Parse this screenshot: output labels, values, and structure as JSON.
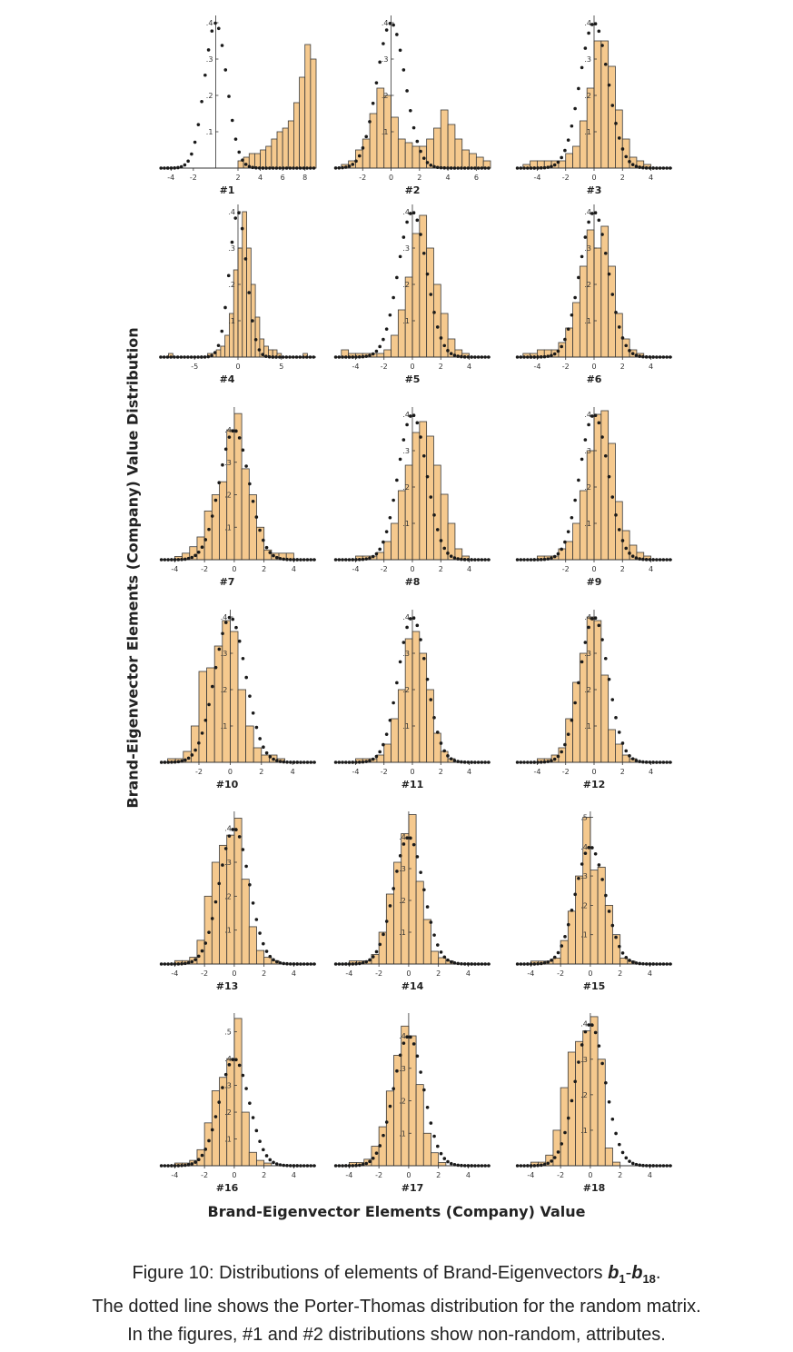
{
  "figure": {
    "ylabel": "Brand-Eigenvector Elements (Company) Value Distribution",
    "xlabel": "Brand-Eigenvector Elements (Company) Value",
    "caption": {
      "line1_prefix": "Figure 10: Distributions of elements of Brand-Eigenvectors ",
      "b_start": "b",
      "sub_start": "1",
      "dash": "-",
      "b_end": "b",
      "sub_end": "18",
      "line1_suffix": ".",
      "line2": "The dotted line shows the Porter-Thomas distribution for the random matrix.",
      "line3": "In the figures, #1 and #2 distributions show non-random, attributes."
    }
  },
  "colors": {
    "bar_fill": "#f5c98e",
    "bar_stroke": "#3a3a3a",
    "dotted_line": "#1a1a1a",
    "axis": "#333333"
  },
  "chart_data": [
    {
      "type": "bar",
      "label": "#1",
      "x_range": [
        -5,
        9
      ],
      "x_ticks": [
        -4,
        -2,
        2,
        4,
        6,
        8
      ],
      "y_range": [
        0,
        0.42
      ],
      "y_ticks": [
        0.1,
        0.2,
        0.3,
        0.4
      ],
      "bin_start": -5,
      "bin_width": 0.5,
      "values": [
        0,
        0,
        0,
        0,
        0,
        0,
        0,
        0,
        0,
        0,
        0,
        0,
        0,
        0,
        0.02,
        0.03,
        0.04,
        0.04,
        0.05,
        0.06,
        0.08,
        0.1,
        0.11,
        0.13,
        0.18,
        0.25,
        0.34,
        0.3
      ]
    },
    {
      "type": "bar",
      "label": "#2",
      "x_range": [
        -4,
        7
      ],
      "x_ticks": [
        -2,
        0,
        2,
        4,
        6
      ],
      "y_range": [
        0,
        0.42
      ],
      "y_ticks": [
        0.1,
        0.2,
        0.3,
        0.4
      ],
      "bin_start": -3.5,
      "bin_width": 0.5,
      "values": [
        0.01,
        0.02,
        0.05,
        0.08,
        0.15,
        0.22,
        0.2,
        0.14,
        0.08,
        0.07,
        0.06,
        0.06,
        0.08,
        0.11,
        0.16,
        0.12,
        0.08,
        0.05,
        0.04,
        0.03,
        0.02
      ]
    },
    {
      "type": "bar",
      "label": "#3",
      "x_range": [
        -5.5,
        5.5
      ],
      "x_ticks": [
        -4,
        -2,
        0,
        2,
        4
      ],
      "y_range": [
        0,
        0.42
      ],
      "y_ticks": [
        0.1,
        0.2,
        0.3,
        0.4
      ],
      "bin_start": -5,
      "bin_width": 0.5,
      "values": [
        0.01,
        0.02,
        0.02,
        0.02,
        0.02,
        0.02,
        0.04,
        0.06,
        0.13,
        0.22,
        0.35,
        0.35,
        0.28,
        0.16,
        0.08,
        0.03,
        0.02,
        0.01,
        0,
        0
      ]
    },
    {
      "type": "bar",
      "label": "#4",
      "x_range": [
        -9,
        9
      ],
      "x_ticks": [
        -5,
        0,
        5
      ],
      "y_range": [
        0,
        0.42
      ],
      "y_ticks": [
        0.1,
        0.2,
        0.3,
        0.4
      ],
      "bin_start": -8,
      "bin_width": 0.5,
      "values": [
        0.01,
        0,
        0,
        0,
        0,
        0,
        0,
        0,
        0,
        0.01,
        0.01,
        0.02,
        0.03,
        0.06,
        0.12,
        0.24,
        0.3,
        0.4,
        0.3,
        0.2,
        0.11,
        0.05,
        0.03,
        0.02,
        0.02,
        0.01,
        0,
        0,
        0,
        0,
        0,
        0.01
      ]
    },
    {
      "type": "bar",
      "label": "#5",
      "x_range": [
        -5.5,
        5.5
      ],
      "x_ticks": [
        -4,
        -2,
        0,
        2,
        4
      ],
      "y_range": [
        0,
        0.42
      ],
      "y_ticks": [
        0.1,
        0.2,
        0.3,
        0.4
      ],
      "bin_start": -5,
      "bin_width": 0.5,
      "values": [
        0.02,
        0.01,
        0.01,
        0.01,
        0.01,
        0.01,
        0.02,
        0.06,
        0.13,
        0.22,
        0.34,
        0.39,
        0.3,
        0.2,
        0.12,
        0.05,
        0.02,
        0.01,
        0,
        0
      ]
    },
    {
      "type": "bar",
      "label": "#6",
      "x_range": [
        -5.5,
        5.5
      ],
      "x_ticks": [
        -4,
        -2,
        0,
        2,
        4
      ],
      "y_range": [
        0,
        0.42
      ],
      "y_ticks": [
        0.1,
        0.2,
        0.3,
        0.4
      ],
      "bin_start": -5,
      "bin_width": 0.5,
      "values": [
        0.01,
        0.01,
        0.02,
        0.02,
        0.02,
        0.04,
        0.08,
        0.15,
        0.25,
        0.35,
        0.3,
        0.36,
        0.25,
        0.12,
        0.05,
        0.02,
        0.01,
        0,
        0,
        0
      ]
    },
    {
      "type": "bar",
      "label": "#7",
      "x_range": [
        -5,
        5.5
      ],
      "x_ticks": [
        -4,
        -2,
        0,
        2,
        4
      ],
      "y_range": [
        0,
        0.47
      ],
      "y_ticks": [
        0.1,
        0.2,
        0.3,
        0.4
      ],
      "bin_start": -4,
      "bin_width": 0.5,
      "values": [
        0.01,
        0.02,
        0.04,
        0.07,
        0.15,
        0.2,
        0.24,
        0.4,
        0.45,
        0.28,
        0.2,
        0.1,
        0.03,
        0.02,
        0.02,
        0.02,
        0
      ]
    },
    {
      "type": "bar",
      "label": "#8",
      "x_range": [
        -5.5,
        5.5
      ],
      "x_ticks": [
        -4,
        -2,
        0,
        2,
        4
      ],
      "y_range": [
        0,
        0.42
      ],
      "y_ticks": [
        0.1,
        0.2,
        0.3,
        0.4
      ],
      "bin_start": -4,
      "bin_width": 0.5,
      "values": [
        0.01,
        0.01,
        0.01,
        0.02,
        0.05,
        0.1,
        0.19,
        0.26,
        0.35,
        0.38,
        0.34,
        0.26,
        0.18,
        0.1,
        0.03,
        0.01,
        0
      ]
    },
    {
      "type": "bar",
      "label": "#9",
      "x_range": [
        -5.5,
        5.5
      ],
      "x_ticks": [
        -2,
        0,
        2,
        4
      ],
      "y_range": [
        0,
        0.42
      ],
      "y_ticks": [
        0.1,
        0.2,
        0.3,
        0.4
      ],
      "bin_start": -4,
      "bin_width": 0.5,
      "values": [
        0.01,
        0.01,
        0.01,
        0.03,
        0.05,
        0.1,
        0.19,
        0.3,
        0.4,
        0.41,
        0.32,
        0.16,
        0.08,
        0.04,
        0.02,
        0.01,
        0
      ]
    },
    {
      "type": "bar",
      "label": "#10",
      "x_range": [
        -4.5,
        5.5
      ],
      "x_ticks": [
        -2,
        0,
        2,
        4
      ],
      "y_range": [
        0,
        0.42
      ],
      "y_ticks": [
        0.1,
        0.2,
        0.3,
        0.4
      ],
      "bin_start": -4,
      "bin_width": 0.5,
      "values": [
        0.01,
        0.01,
        0.03,
        0.1,
        0.25,
        0.26,
        0.32,
        0.39,
        0.36,
        0.2,
        0.1,
        0.04,
        0.02,
        0.02,
        0.01,
        0
      ]
    },
    {
      "type": "bar",
      "label": "#11",
      "x_range": [
        -5.5,
        5.5
      ],
      "x_ticks": [
        -4,
        -2,
        0,
        2,
        4
      ],
      "y_range": [
        0,
        0.42
      ],
      "y_ticks": [
        0.1,
        0.2,
        0.3,
        0.4
      ],
      "bin_start": -4,
      "bin_width": 0.5,
      "values": [
        0.01,
        0.01,
        0.01,
        0.02,
        0.05,
        0.12,
        0.2,
        0.34,
        0.36,
        0.3,
        0.2,
        0.08,
        0.03,
        0.01,
        0,
        0
      ]
    },
    {
      "type": "bar",
      "label": "#12",
      "x_range": [
        -5.5,
        5.5
      ],
      "x_ticks": [
        -4,
        -2,
        0,
        2,
        4
      ],
      "y_range": [
        0,
        0.42
      ],
      "y_ticks": [
        0.1,
        0.2,
        0.3,
        0.4
      ],
      "bin_start": -4,
      "bin_width": 0.5,
      "values": [
        0.01,
        0.01,
        0.02,
        0.04,
        0.12,
        0.22,
        0.3,
        0.4,
        0.39,
        0.24,
        0.09,
        0.05,
        0.02,
        0.01,
        0,
        0
      ]
    },
    {
      "type": "bar",
      "label": "#13",
      "x_range": [
        -5,
        5.5
      ],
      "x_ticks": [
        -4,
        -2,
        0,
        2,
        4
      ],
      "y_range": [
        0,
        0.45
      ],
      "y_ticks": [
        0.1,
        0.2,
        0.3,
        0.4
      ],
      "bin_start": -4,
      "bin_width": 0.5,
      "values": [
        0.01,
        0.01,
        0.02,
        0.07,
        0.2,
        0.3,
        0.35,
        0.38,
        0.43,
        0.25,
        0.11,
        0.04,
        0.02,
        0.01,
        0,
        0
      ]
    },
    {
      "type": "bar",
      "label": "#14",
      "x_range": [
        -5,
        5.5
      ],
      "x_ticks": [
        -4,
        -2,
        0,
        2,
        4
      ],
      "y_range": [
        0,
        0.48
      ],
      "y_ticks": [
        0.1,
        0.2,
        0.3,
        0.4
      ],
      "bin_start": -4,
      "bin_width": 0.5,
      "values": [
        0.01,
        0.01,
        0.01,
        0.03,
        0.1,
        0.22,
        0.32,
        0.41,
        0.47,
        0.26,
        0.14,
        0.04,
        0.02,
        0.01,
        0,
        0
      ]
    },
    {
      "type": "bar",
      "label": "#15",
      "x_range": [
        -5,
        5.5
      ],
      "x_ticks": [
        -4,
        -2,
        0,
        2,
        4
      ],
      "y_range": [
        0,
        0.52
      ],
      "y_ticks": [
        0.1,
        0.2,
        0.3,
        0.4,
        0.5
      ],
      "bin_start": -4,
      "bin_width": 0.5,
      "values": [
        0.01,
        0.01,
        0.01,
        0.02,
        0.08,
        0.18,
        0.3,
        0.5,
        0.32,
        0.33,
        0.2,
        0.1,
        0.02,
        0.01,
        0,
        0
      ]
    },
    {
      "type": "bar",
      "label": "#16",
      "x_range": [
        -5,
        5.5
      ],
      "x_ticks": [
        -4,
        -2,
        0,
        2,
        4
      ],
      "y_range": [
        0,
        0.57
      ],
      "y_ticks": [
        0.1,
        0.2,
        0.3,
        0.4,
        0.5
      ],
      "bin_start": -4,
      "bin_width": 0.5,
      "values": [
        0.01,
        0.01,
        0.02,
        0.06,
        0.16,
        0.28,
        0.33,
        0.4,
        0.55,
        0.2,
        0.05,
        0.02,
        0.01,
        0,
        0,
        0
      ]
    },
    {
      "type": "bar",
      "label": "#17",
      "x_range": [
        -5,
        5.5
      ],
      "x_ticks": [
        -4,
        -2,
        0,
        2,
        4
      ],
      "y_range": [
        0,
        0.47
      ],
      "y_ticks": [
        0.1,
        0.2,
        0.3,
        0.4
      ],
      "bin_start": -4,
      "bin_width": 0.5,
      "values": [
        0.01,
        0.01,
        0.02,
        0.06,
        0.12,
        0.23,
        0.34,
        0.43,
        0.4,
        0.25,
        0.1,
        0.04,
        0.01,
        0,
        0,
        0
      ]
    },
    {
      "type": "bar",
      "label": "#18",
      "x_range": [
        -5,
        5.5
      ],
      "x_ticks": [
        -4,
        -2,
        0,
        2,
        4
      ],
      "y_range": [
        0,
        0.43
      ],
      "y_ticks": [
        0.1,
        0.2,
        0.3,
        0.4
      ],
      "bin_start": -4,
      "bin_width": 0.5,
      "values": [
        0.01,
        0.01,
        0.03,
        0.1,
        0.22,
        0.32,
        0.35,
        0.38,
        0.42,
        0.3,
        0.05,
        0.01,
        0,
        0,
        0,
        0
      ]
    }
  ]
}
